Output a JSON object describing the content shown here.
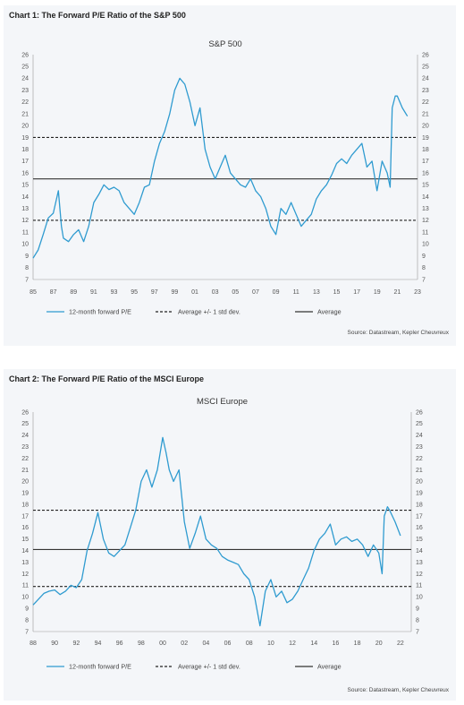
{
  "chart_data": [
    {
      "type": "line",
      "title": "Chart 1: The Forward P/E Ratio of the S&P 500",
      "subtitle": "S&P 500",
      "source": "Source: Datastream, Kepler Cheuvreux",
      "ylim": [
        7,
        26
      ],
      "yticks": [
        "7",
        "8",
        "9",
        "10",
        "11",
        "12",
        "13",
        "14",
        "15",
        "16",
        "17",
        "18",
        "19",
        "20",
        "21",
        "22",
        "23",
        "24",
        "25",
        "26"
      ],
      "xlim": [
        1985,
        2023
      ],
      "xticks": [
        "85",
        "87",
        "89",
        "91",
        "93",
        "95",
        "97",
        "99",
        "01",
        "03",
        "05",
        "07",
        "09",
        "11",
        "13",
        "15",
        "17",
        "19",
        "21",
        "23"
      ],
      "legend": [
        "12-month forward P/E",
        "Average +/- 1 std dev.",
        "Average"
      ],
      "legend_position": "bottom",
      "average": 15.5,
      "upper_band": 19.0,
      "lower_band": 12.0,
      "series": [
        {
          "name": "12-month forward P/E",
          "color": "#2f9bd0",
          "x": [
            1985.0,
            1985.5,
            1986.0,
            1986.5,
            1987.0,
            1987.5,
            1987.8,
            1988.0,
            1988.5,
            1989.0,
            1989.5,
            1990.0,
            1990.5,
            1991.0,
            1991.5,
            1992.0,
            1992.5,
            1993.0,
            1993.5,
            1994.0,
            1994.5,
            1995.0,
            1995.5,
            1996.0,
            1996.5,
            1997.0,
            1997.5,
            1998.0,
            1998.5,
            1999.0,
            1999.5,
            2000.0,
            2000.5,
            2001.0,
            2001.5,
            2002.0,
            2002.5,
            2003.0,
            2003.5,
            2004.0,
            2004.5,
            2005.0,
            2005.5,
            2006.0,
            2006.5,
            2007.0,
            2007.5,
            2008.0,
            2008.5,
            2009.0,
            2009.5,
            2010.0,
            2010.5,
            2011.0,
            2011.5,
            2012.0,
            2012.5,
            2013.0,
            2013.5,
            2014.0,
            2014.5,
            2015.0,
            2015.5,
            2016.0,
            2016.5,
            2017.0,
            2017.5,
            2018.0,
            2018.5,
            2019.0,
            2019.5,
            2020.0,
            2020.3,
            2020.5,
            2020.8,
            2021.0,
            2021.5,
            2022.0
          ],
          "values": [
            8.8,
            9.5,
            10.8,
            12.2,
            12.6,
            14.5,
            11.5,
            10.5,
            10.2,
            10.8,
            11.2,
            10.2,
            11.5,
            13.5,
            14.2,
            15.0,
            14.6,
            14.8,
            14.5,
            13.5,
            13.0,
            12.5,
            13.5,
            14.8,
            15.0,
            17.0,
            18.5,
            19.5,
            21.0,
            23.0,
            24.0,
            23.5,
            22.0,
            20.0,
            21.5,
            18.0,
            16.5,
            15.5,
            16.5,
            17.5,
            16.0,
            15.5,
            15.0,
            14.8,
            15.5,
            14.5,
            14.0,
            13.0,
            11.5,
            10.8,
            13.0,
            12.5,
            13.5,
            12.5,
            11.5,
            12.0,
            12.5,
            13.8,
            14.5,
            15.0,
            15.8,
            16.8,
            17.2,
            16.8,
            17.5,
            18.0,
            18.5,
            16.5,
            17.0,
            14.5,
            17.0,
            16.0,
            14.8,
            21.5,
            22.5,
            22.5,
            21.5,
            20.8
          ]
        }
      ]
    },
    {
      "type": "line",
      "title": "Chart 2: The Forward P/E Ratio of the MSCI Europe",
      "subtitle": "MSCI Europe",
      "source": "Source: Datastream, Kepler Cheuvreux",
      "ylim": [
        7,
        26
      ],
      "yticks": [
        "7",
        "8",
        "9",
        "10",
        "11",
        "12",
        "13",
        "14",
        "15",
        "16",
        "17",
        "18",
        "19",
        "20",
        "21",
        "22",
        "23",
        "24",
        "25",
        "26"
      ],
      "xlim": [
        1988,
        2023
      ],
      "xticks": [
        "88",
        "90",
        "92",
        "94",
        "96",
        "98",
        "00",
        "02",
        "04",
        "06",
        "08",
        "10",
        "12",
        "14",
        "16",
        "18",
        "20",
        "22"
      ],
      "legend": [
        "12-month forward P/E",
        "Average +/- 1 std dev.",
        "Average"
      ],
      "legend_position": "bottom",
      "average": 14.1,
      "upper_band": 17.5,
      "lower_band": 10.9,
      "series": [
        {
          "name": "12-month forward P/E",
          "color": "#2f9bd0",
          "x": [
            1988.0,
            1988.5,
            1989.0,
            1989.5,
            1990.0,
            1990.5,
            1991.0,
            1991.5,
            1992.0,
            1992.5,
            1993.0,
            1993.5,
            1994.0,
            1994.5,
            1995.0,
            1995.5,
            1996.0,
            1996.5,
            1997.0,
            1997.5,
            1998.0,
            1998.5,
            1999.0,
            1999.5,
            2000.0,
            2000.3,
            2000.6,
            2001.0,
            2001.5,
            2002.0,
            2002.5,
            2003.0,
            2003.5,
            2004.0,
            2004.5,
            2005.0,
            2005.5,
            2006.0,
            2006.5,
            2007.0,
            2007.5,
            2008.0,
            2008.5,
            2009.0,
            2009.5,
            2010.0,
            2010.5,
            2011.0,
            2011.5,
            2012.0,
            2012.5,
            2013.0,
            2013.5,
            2014.0,
            2014.5,
            2015.0,
            2015.5,
            2016.0,
            2016.5,
            2017.0,
            2017.5,
            2018.0,
            2018.5,
            2019.0,
            2019.5,
            2020.0,
            2020.3,
            2020.5,
            2020.8,
            2021.0,
            2021.5,
            2022.0
          ],
          "values": [
            9.3,
            9.8,
            10.3,
            10.5,
            10.6,
            10.2,
            10.5,
            11.0,
            10.8,
            11.5,
            14.0,
            15.5,
            17.3,
            15.0,
            13.8,
            13.5,
            14.0,
            14.5,
            16.0,
            17.5,
            20.0,
            21.0,
            19.5,
            21.0,
            23.8,
            22.5,
            21.0,
            20.0,
            21.0,
            16.5,
            14.2,
            15.5,
            17.0,
            15.0,
            14.5,
            14.2,
            13.5,
            13.2,
            13.0,
            12.8,
            12.0,
            11.5,
            10.0,
            7.5,
            10.5,
            11.5,
            10.0,
            10.5,
            9.5,
            9.8,
            10.5,
            11.5,
            12.5,
            14.0,
            15.0,
            15.5,
            16.3,
            14.5,
            15.0,
            15.2,
            14.8,
            15.0,
            14.5,
            13.5,
            14.5,
            13.8,
            12.0,
            17.0,
            17.8,
            17.5,
            16.5,
            15.3
          ]
        }
      ]
    }
  ]
}
